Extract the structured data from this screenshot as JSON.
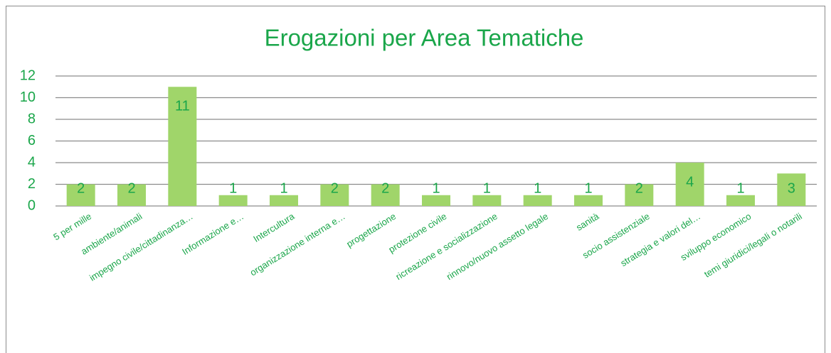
{
  "chart_data": {
    "type": "bar",
    "title": "Erogazioni per Area Tematiche",
    "categories": [
      "5 per mille",
      "ambiente/animali",
      "impegno civile/cittadinanza…",
      "Informazione e…",
      "Intercultura",
      "organizzazione interna e…",
      "progettazione",
      "protezione civile",
      "ricreazione e socializzazione",
      "rinnovo/nuovo assetto legale",
      "sanità",
      "socio assistenziale",
      "strategia e valori del…",
      "sviluppo economico",
      "temi giuridici/legali o notarili"
    ],
    "values": [
      2,
      2,
      11,
      1,
      1,
      2,
      2,
      1,
      1,
      1,
      1,
      2,
      4,
      1,
      3
    ],
    "color": "#a0d56a",
    "ylim": [
      0,
      12
    ],
    "yticks": [
      0,
      2,
      4,
      6,
      8,
      10,
      12
    ],
    "grid": true
  }
}
